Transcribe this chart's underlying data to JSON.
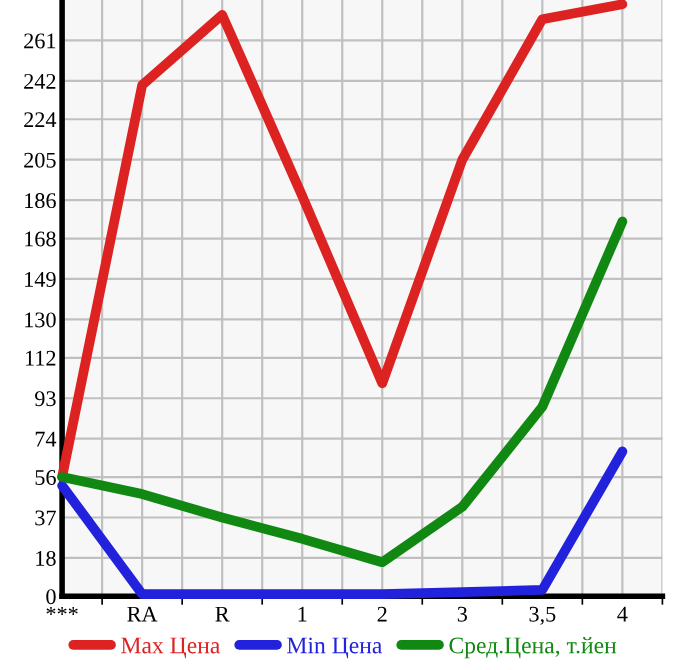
{
  "chart_data": {
    "type": "line",
    "categories": [
      "***",
      "RA",
      "R",
      "1",
      "2",
      "3",
      "3,5",
      "4"
    ],
    "series": [
      {
        "name": "Max Цена",
        "color": "#dd2222",
        "values": [
          56,
          240,
          273,
          188,
          100,
          205,
          271,
          278
        ]
      },
      {
        "name": "Min Цена",
        "color": "#2222dd",
        "values": [
          52,
          1,
          1,
          1,
          1,
          2,
          3,
          68
        ]
      },
      {
        "name": "Сред.Цена, т.йен",
        "color": "#118811",
        "values": [
          56,
          48,
          37,
          27,
          16,
          42,
          89,
          176
        ]
      }
    ],
    "ylim": [
      0,
      280
    ],
    "yticks": [
      0,
      18,
      37,
      56,
      74,
      93,
      112,
      130,
      149,
      168,
      186,
      205,
      224,
      242,
      261
    ],
    "grid": true,
    "legend": "bottom",
    "marker": "none",
    "line_style": "solid"
  }
}
